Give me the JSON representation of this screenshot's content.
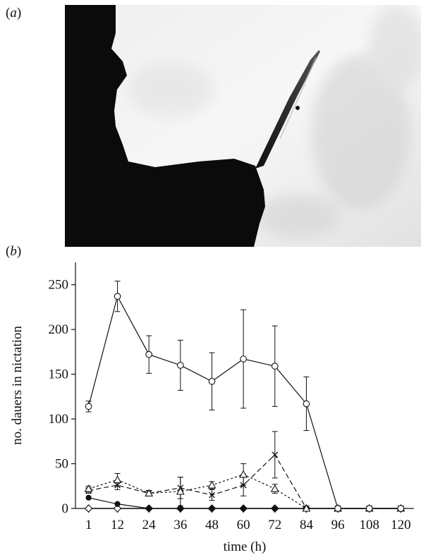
{
  "panels": {
    "a": "a",
    "b": "b"
  },
  "chart_data": {
    "type": "line",
    "xlabel": "time (h)",
    "ylabel": "no. dauers in nictation",
    "categories": [
      "1",
      "12",
      "24",
      "36",
      "48",
      "60",
      "72",
      "84",
      "96",
      "108",
      "120"
    ],
    "x": [
      1,
      12,
      24,
      36,
      48,
      60,
      72,
      84,
      96,
      108,
      120
    ],
    "ylim": [
      0,
      275
    ],
    "yticks": [
      0,
      50,
      100,
      150,
      200,
      250
    ],
    "grid": false,
    "legend": "none",
    "series": [
      {
        "marker": "open-circle",
        "line": "solid",
        "values": [
          114,
          237,
          172,
          160,
          142,
          167,
          159,
          117,
          0,
          0,
          0
        ],
        "err": [
          6,
          17,
          21,
          28,
          32,
          55,
          45,
          30,
          0,
          0,
          0
        ]
      },
      {
        "marker": "open-triangle",
        "line": "dotted",
        "values": [
          22,
          32,
          17,
          19,
          26,
          38,
          22,
          0,
          0,
          0,
          0
        ],
        "err": [
          3,
          7,
          3,
          16,
          4,
          12,
          5,
          0,
          0,
          0,
          0
        ]
      },
      {
        "marker": "cross",
        "line": "dashed",
        "values": [
          20,
          26,
          17,
          23,
          15,
          26,
          60,
          0,
          0,
          0,
          0
        ],
        "err": [
          3,
          5,
          3,
          12,
          6,
          12,
          26,
          0,
          0,
          0,
          0
        ]
      },
      {
        "marker": "filled-circle",
        "line": "solid",
        "values": [
          12,
          5,
          0,
          0,
          0,
          0,
          0,
          0,
          0,
          0,
          0
        ],
        "err": [
          0,
          0,
          0,
          0,
          0,
          0,
          0,
          0,
          0,
          0,
          0
        ]
      },
      {
        "marker": "open-diamond",
        "line": "solid",
        "values": [
          0,
          0,
          0,
          0,
          0,
          0,
          0,
          0,
          0,
          0,
          0
        ],
        "err": [
          0,
          0,
          0,
          0,
          0,
          0,
          0,
          0,
          0,
          0,
          0
        ]
      },
      {
        "marker": "filled-diamond",
        "line": "solid",
        "values": [
          0,
          0,
          0,
          0,
          0,
          0,
          0,
          0,
          0,
          0,
          0
        ],
        "err": [
          0,
          0,
          0,
          0,
          0,
          0,
          0,
          0,
          0,
          0,
          0
        ]
      }
    ]
  }
}
